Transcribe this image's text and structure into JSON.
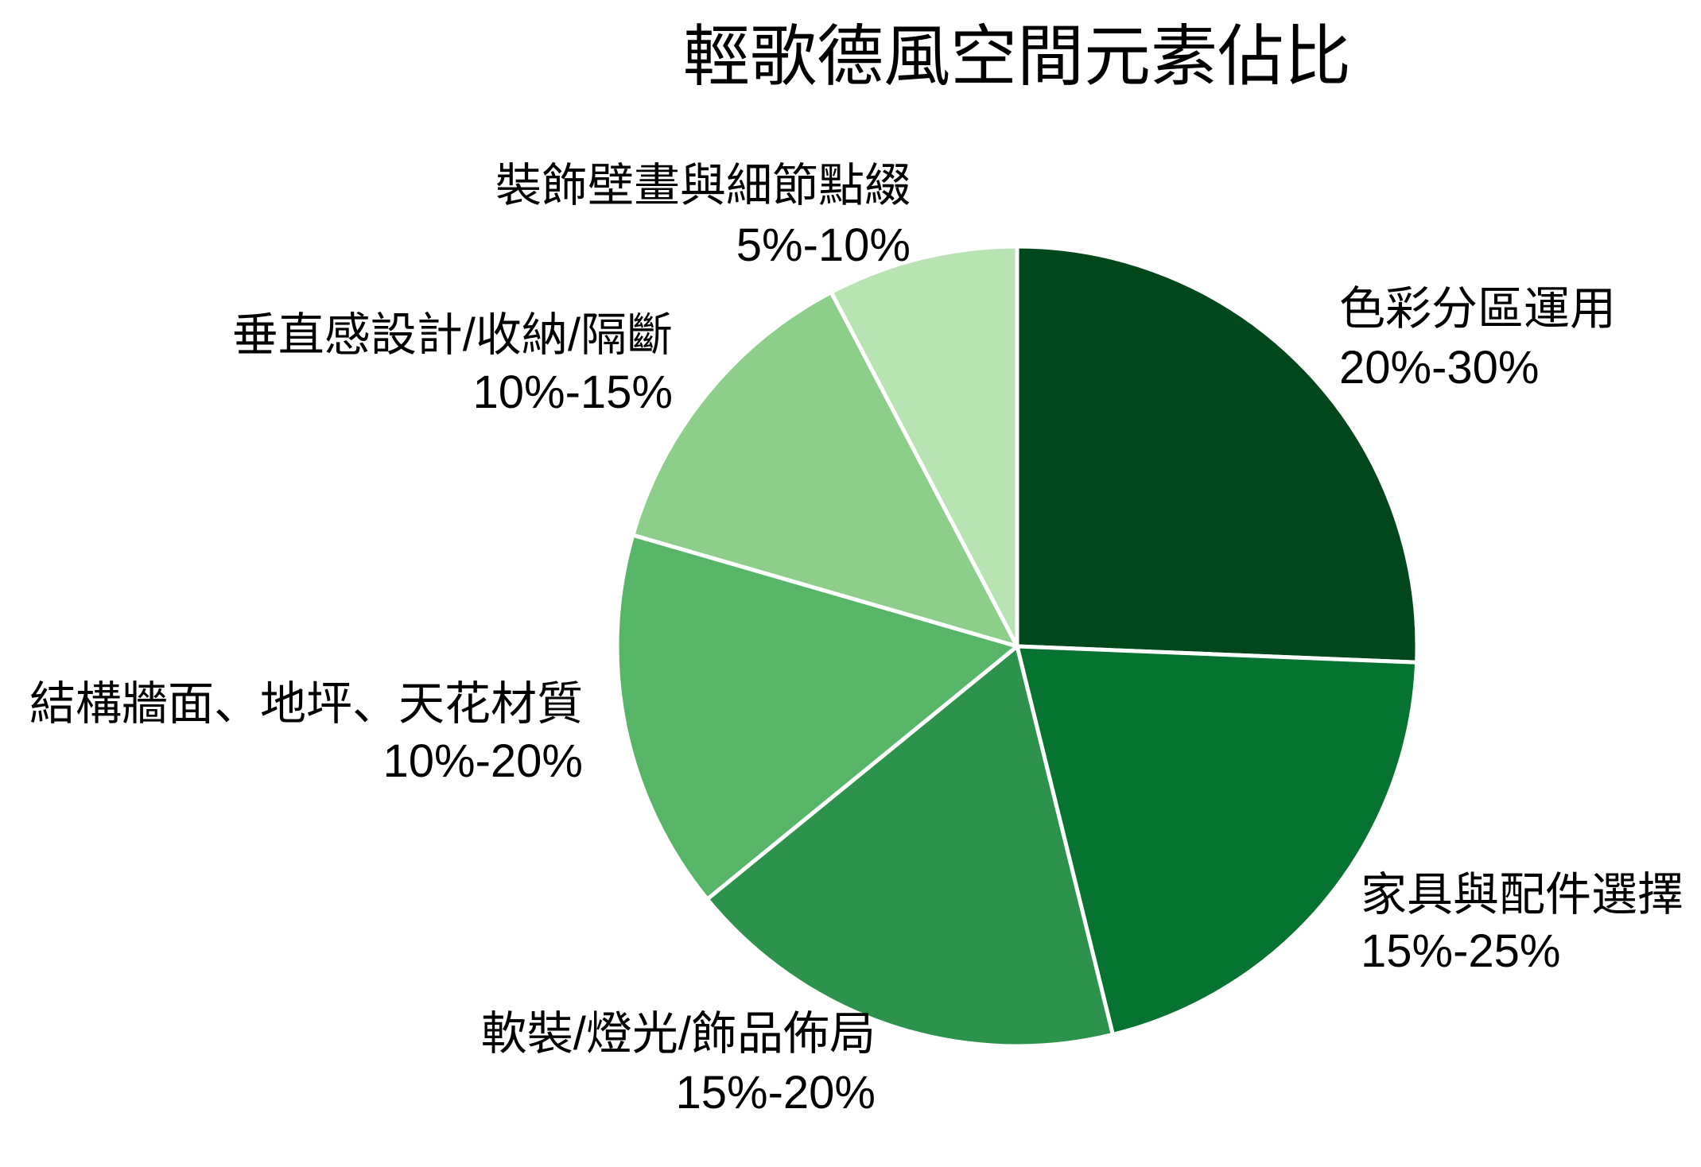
{
  "chart_data": {
    "type": "pie",
    "title": "輕歌德風空間元素佔比",
    "categories": [
      "色彩分區運用",
      "家具與配件選擇",
      "軟裝/燈光/飾品佈局",
      "結構牆面、地坪、天花材質",
      "垂直感設計/收納/隔斷",
      "裝飾壁畫與細節點綴"
    ],
    "ranges": [
      "20%-30%",
      "15%-25%",
      "15%-20%",
      "10%-20%",
      "10%-15%",
      "5%-10%"
    ],
    "values": [
      25,
      20,
      17.5,
      15,
      12.5,
      7.5
    ],
    "colors": [
      "#00471b",
      "#077331",
      "#2d924b",
      "#56b567",
      "#8dcf8a",
      "#b8e3b2"
    ],
    "legend": "none"
  }
}
